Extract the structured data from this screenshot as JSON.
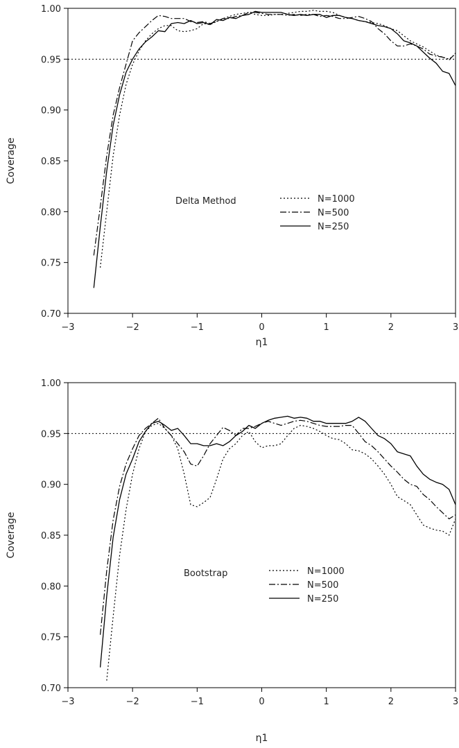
{
  "chart_data": [
    {
      "type": "line",
      "xlabel": "η1",
      "ylabel": "Coverage",
      "xlim": [
        -3,
        3
      ],
      "ylim": [
        0.7,
        1.0
      ],
      "xticks": [
        "-3",
        "-2",
        "-1",
        "0",
        "1",
        "2",
        "3"
      ],
      "yticks": [
        "0.70",
        "0.75",
        "0.80",
        "0.85",
        "0.90",
        "0.95",
        "1.00"
      ],
      "annotation": "Delta Method",
      "reference_line": 0.95,
      "legend_position": "center-right",
      "series": [
        {
          "name": "N=1000",
          "style": "dotted",
          "x": [
            -2.5,
            -2.4,
            -2.3,
            -2.2,
            -2.1,
            -2.0,
            -1.9,
            -1.8,
            -1.7,
            -1.6,
            -1.5,
            -1.4,
            -1.3,
            -1.2,
            -1.1,
            -1.0,
            -0.9,
            -0.8,
            -0.7,
            -0.6,
            -0.5,
            -0.4,
            -0.3,
            -0.2,
            -0.1,
            0.0,
            0.1,
            0.2,
            0.3,
            0.4,
            0.5,
            0.6,
            0.7,
            0.8,
            0.9,
            1.0,
            1.1,
            1.2,
            1.3,
            1.4,
            1.5,
            1.6,
            1.7,
            1.8,
            1.9,
            2.0,
            2.1,
            2.2,
            2.3,
            2.4,
            2.5,
            2.6,
            2.7,
            2.8,
            2.9,
            3.0
          ],
          "y": [
            0.745,
            0.8,
            0.855,
            0.895,
            0.925,
            0.945,
            0.958,
            0.968,
            0.975,
            0.98,
            0.983,
            0.983,
            0.978,
            0.977,
            0.978,
            0.98,
            0.985,
            0.984,
            0.987,
            0.99,
            0.992,
            0.994,
            0.995,
            0.996,
            0.994,
            0.993,
            0.993,
            0.994,
            0.994,
            0.995,
            0.996,
            0.997,
            0.997,
            0.998,
            0.997,
            0.997,
            0.996,
            0.993,
            0.991,
            0.99,
            0.988,
            0.987,
            0.986,
            0.985,
            0.983,
            0.98,
            0.978,
            0.973,
            0.968,
            0.965,
            0.962,
            0.958,
            0.954,
            0.952,
            0.95,
            0.955
          ]
        },
        {
          "name": "N=500",
          "style": "dashdot",
          "x": [
            -2.6,
            -2.5,
            -2.4,
            -2.3,
            -2.2,
            -2.1,
            -2.0,
            -1.9,
            -1.8,
            -1.7,
            -1.6,
            -1.5,
            -1.4,
            -1.3,
            -1.2,
            -1.1,
            -1.0,
            -0.9,
            -0.8,
            -0.7,
            -0.6,
            -0.5,
            -0.4,
            -0.3,
            -0.2,
            -0.1,
            0.0,
            0.1,
            0.2,
            0.3,
            0.4,
            0.5,
            0.6,
            0.7,
            0.8,
            0.9,
            1.0,
            1.1,
            1.2,
            1.3,
            1.4,
            1.5,
            1.6,
            1.7,
            1.8,
            1.9,
            2.0,
            2.1,
            2.2,
            2.3,
            2.4,
            2.5,
            2.6,
            2.7,
            2.8,
            2.9,
            3.0
          ],
          "y": [
            0.757,
            0.805,
            0.855,
            0.895,
            0.922,
            0.945,
            0.968,
            0.976,
            0.982,
            0.988,
            0.993,
            0.992,
            0.99,
            0.99,
            0.99,
            0.987,
            0.986,
            0.987,
            0.985,
            0.987,
            0.99,
            0.99,
            0.992,
            0.993,
            0.996,
            0.996,
            0.995,
            0.994,
            0.994,
            0.994,
            0.993,
            0.994,
            0.993,
            0.994,
            0.994,
            0.992,
            0.993,
            0.992,
            0.99,
            0.99,
            0.991,
            0.992,
            0.99,
            0.987,
            0.98,
            0.975,
            0.968,
            0.963,
            0.963,
            0.965,
            0.963,
            0.96,
            0.955,
            0.953,
            0.952,
            0.949,
            0.956
          ]
        },
        {
          "name": "N=250",
          "style": "solid",
          "x": [
            -2.6,
            -2.5,
            -2.4,
            -2.3,
            -2.2,
            -2.1,
            -2.0,
            -1.9,
            -1.8,
            -1.7,
            -1.6,
            -1.5,
            -1.4,
            -1.3,
            -1.2,
            -1.1,
            -1.0,
            -0.9,
            -0.8,
            -0.7,
            -0.6,
            -0.5,
            -0.4,
            -0.3,
            -0.2,
            -0.1,
            0.0,
            0.1,
            0.2,
            0.3,
            0.4,
            0.5,
            0.6,
            0.7,
            0.8,
            0.9,
            1.0,
            1.1,
            1.2,
            1.3,
            1.4,
            1.5,
            1.6,
            1.7,
            1.8,
            1.9,
            2.0,
            2.1,
            2.2,
            2.3,
            2.4,
            2.5,
            2.6,
            2.7,
            2.8,
            2.9,
            3.0
          ],
          "y": [
            0.725,
            0.785,
            0.84,
            0.885,
            0.915,
            0.937,
            0.95,
            0.96,
            0.967,
            0.972,
            0.978,
            0.977,
            0.985,
            0.986,
            0.985,
            0.988,
            0.985,
            0.986,
            0.984,
            0.989,
            0.988,
            0.991,
            0.99,
            0.993,
            0.994,
            0.997,
            0.996,
            0.996,
            0.996,
            0.996,
            0.994,
            0.993,
            0.994,
            0.993,
            0.994,
            0.994,
            0.991,
            0.993,
            0.993,
            0.991,
            0.99,
            0.988,
            0.987,
            0.985,
            0.983,
            0.982,
            0.98,
            0.975,
            0.968,
            0.966,
            0.963,
            0.957,
            0.951,
            0.946,
            0.938,
            0.936,
            0.924
          ]
        }
      ]
    },
    {
      "type": "line",
      "xlabel": "η1",
      "ylabel": "Coverage",
      "xlim": [
        -3,
        3
      ],
      "ylim": [
        0.7,
        1.0
      ],
      "xticks": [
        "-3",
        "-2",
        "-1",
        "0",
        "1",
        "2",
        "3"
      ],
      "yticks": [
        "0.70",
        "0.75",
        "0.80",
        "0.85",
        "0.90",
        "0.95",
        "1.00"
      ],
      "annotation": "Bootstrap",
      "reference_line": 0.95,
      "legend_position": "center-right",
      "series": [
        {
          "name": "N=1000",
          "style": "dotted",
          "x": [
            -2.4,
            -2.3,
            -2.2,
            -2.1,
            -2.0,
            -1.9,
            -1.8,
            -1.7,
            -1.6,
            -1.5,
            -1.4,
            -1.3,
            -1.2,
            -1.1,
            -1.0,
            -0.9,
            -0.8,
            -0.7,
            -0.6,
            -0.5,
            -0.4,
            -0.3,
            -0.2,
            -0.1,
            0.0,
            0.1,
            0.2,
            0.3,
            0.4,
            0.5,
            0.6,
            0.7,
            0.8,
            0.9,
            1.0,
            1.1,
            1.2,
            1.3,
            1.4,
            1.5,
            1.6,
            1.7,
            1.8,
            1.9,
            2.0,
            2.1,
            2.2,
            2.3,
            2.4,
            2.5,
            2.6,
            2.7,
            2.8,
            2.9,
            3.0
          ],
          "y": [
            0.707,
            0.77,
            0.83,
            0.875,
            0.91,
            0.935,
            0.952,
            0.958,
            0.96,
            0.955,
            0.948,
            0.935,
            0.91,
            0.88,
            0.878,
            0.882,
            0.887,
            0.905,
            0.925,
            0.935,
            0.94,
            0.948,
            0.952,
            0.942,
            0.936,
            0.938,
            0.938,
            0.94,
            0.948,
            0.955,
            0.958,
            0.957,
            0.955,
            0.952,
            0.948,
            0.945,
            0.944,
            0.94,
            0.934,
            0.933,
            0.93,
            0.925,
            0.918,
            0.91,
            0.9,
            0.888,
            0.884,
            0.88,
            0.87,
            0.86,
            0.857,
            0.855,
            0.854,
            0.85,
            0.866
          ]
        },
        {
          "name": "N=500",
          "style": "dashdot",
          "x": [
            -2.5,
            -2.4,
            -2.3,
            -2.2,
            -2.1,
            -2.0,
            -1.9,
            -1.8,
            -1.7,
            -1.6,
            -1.5,
            -1.4,
            -1.3,
            -1.2,
            -1.1,
            -1.0,
            -0.9,
            -0.8,
            -0.7,
            -0.6,
            -0.5,
            -0.4,
            -0.3,
            -0.2,
            -0.1,
            0.0,
            0.1,
            0.2,
            0.3,
            0.4,
            0.5,
            0.6,
            0.7,
            0.8,
            0.9,
            1.0,
            1.1,
            1.2,
            1.3,
            1.4,
            1.5,
            1.6,
            1.7,
            1.8,
            1.9,
            2.0,
            2.1,
            2.2,
            2.3,
            2.4,
            2.5,
            2.6,
            2.7,
            2.8,
            2.9,
            3.0
          ],
          "y": [
            0.752,
            0.815,
            0.865,
            0.898,
            0.92,
            0.935,
            0.948,
            0.955,
            0.96,
            0.965,
            0.955,
            0.948,
            0.94,
            0.932,
            0.92,
            0.918,
            0.928,
            0.94,
            0.948,
            0.956,
            0.953,
            0.948,
            0.955,
            0.955,
            0.957,
            0.96,
            0.962,
            0.96,
            0.958,
            0.96,
            0.962,
            0.963,
            0.962,
            0.96,
            0.958,
            0.957,
            0.957,
            0.957,
            0.958,
            0.958,
            0.95,
            0.942,
            0.938,
            0.932,
            0.925,
            0.918,
            0.912,
            0.905,
            0.9,
            0.898,
            0.89,
            0.885,
            0.878,
            0.872,
            0.866,
            0.87
          ]
        },
        {
          "name": "N=250",
          "style": "solid",
          "x": [
            -2.5,
            -2.4,
            -2.3,
            -2.2,
            -2.1,
            -2.0,
            -1.9,
            -1.8,
            -1.7,
            -1.6,
            -1.5,
            -1.4,
            -1.3,
            -1.2,
            -1.1,
            -1.0,
            -0.9,
            -0.8,
            -0.7,
            -0.6,
            -0.5,
            -0.4,
            -0.3,
            -0.2,
            -0.1,
            0.0,
            0.1,
            0.2,
            0.3,
            0.4,
            0.5,
            0.6,
            0.7,
            0.8,
            0.9,
            1.0,
            1.1,
            1.2,
            1.3,
            1.4,
            1.5,
            1.6,
            1.7,
            1.8,
            1.9,
            2.0,
            2.1,
            2.2,
            2.3,
            2.4,
            2.5,
            2.6,
            2.7,
            2.8,
            2.9,
            3.0
          ],
          "y": [
            0.72,
            0.79,
            0.848,
            0.885,
            0.91,
            0.925,
            0.942,
            0.952,
            0.96,
            0.962,
            0.958,
            0.953,
            0.955,
            0.948,
            0.94,
            0.94,
            0.938,
            0.938,
            0.94,
            0.938,
            0.942,
            0.948,
            0.952,
            0.958,
            0.955,
            0.96,
            0.963,
            0.965,
            0.966,
            0.967,
            0.965,
            0.966,
            0.965,
            0.962,
            0.962,
            0.96,
            0.96,
            0.96,
            0.96,
            0.962,
            0.966,
            0.962,
            0.955,
            0.948,
            0.945,
            0.94,
            0.932,
            0.93,
            0.928,
            0.918,
            0.91,
            0.905,
            0.902,
            0.9,
            0.895,
            0.88
          ]
        }
      ]
    }
  ]
}
